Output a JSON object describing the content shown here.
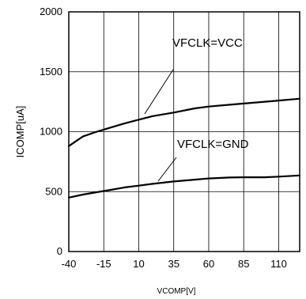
{
  "chart_data": {
    "type": "line",
    "title": "",
    "xlabel": "VCOMP[V]",
    "ylabel": "ICOMP[uA]",
    "xlim": [
      -40,
      125
    ],
    "ylim": [
      0,
      2000
    ],
    "x_ticks": [
      -40,
      -15,
      10,
      35,
      60,
      85,
      110
    ],
    "x_tick_labels": [
      "-40",
      "-15",
      "10",
      "35",
      "60",
      "85",
      "110"
    ],
    "y_ticks": [
      0,
      500,
      1000,
      1500,
      2000
    ],
    "y_tick_labels": [
      "0",
      "500",
      "1000",
      "1500",
      "2000"
    ],
    "grid": true,
    "legend": "none",
    "series": [
      {
        "name": "VFCLK=VCC",
        "x": [
          -40,
          -30,
          -20,
          -10,
          0,
          10,
          20,
          35,
          50,
          60,
          75,
          85,
          100,
          110,
          125
        ],
        "values": [
          880,
          960,
          1000,
          1035,
          1070,
          1100,
          1130,
          1160,
          1195,
          1210,
          1225,
          1235,
          1250,
          1260,
          1275
        ]
      },
      {
        "name": "VFCLK=GND",
        "x": [
          -40,
          -30,
          -20,
          -10,
          0,
          10,
          20,
          35,
          50,
          60,
          75,
          85,
          100,
          110,
          125
        ],
        "values": [
          450,
          475,
          495,
          515,
          535,
          550,
          565,
          585,
          600,
          610,
          618,
          620,
          620,
          625,
          635
        ]
      }
    ],
    "annotations": [
      {
        "text": "VFCLK=VCC",
        "series": "VFCLK=VCC",
        "x": 10
      },
      {
        "text": "VFCLK=GND",
        "series": "VFCLK=GND",
        "x": 20
      }
    ]
  }
}
